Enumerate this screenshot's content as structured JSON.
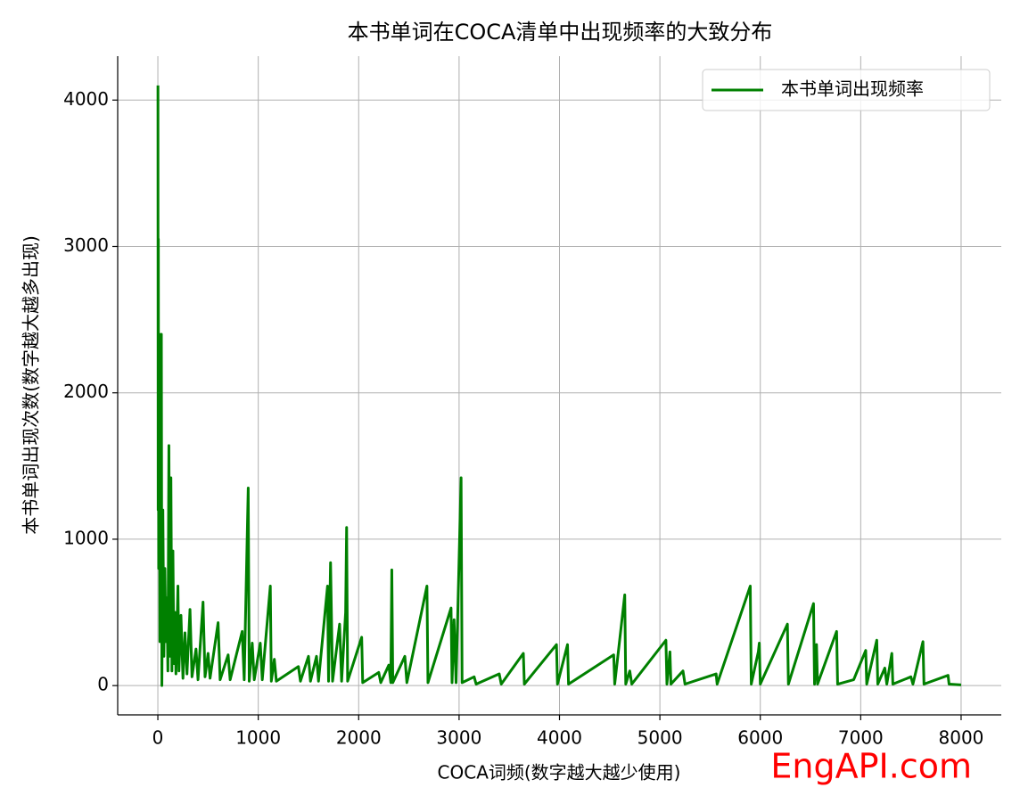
{
  "chart_data": {
    "type": "line",
    "title": "本书单词在COCA清单中出现频率的大致分布",
    "x_label": "COCA词频(数字越大越少使用)",
    "y_label": "本书单词出现次数(数字越大越多出现)",
    "watermark": "EngAPI.com",
    "xlim": [
      -400,
      8400
    ],
    "ylim": [
      -200,
      4300
    ],
    "xticks": [
      0,
      1000,
      2000,
      3000,
      4000,
      5000,
      6000,
      7000,
      8000
    ],
    "yticks": [
      0,
      1000,
      2000,
      3000,
      4000
    ],
    "grid": true,
    "legend": "upper right",
    "x": [
      1,
      3,
      5,
      8,
      10,
      15,
      20,
      25,
      30,
      35,
      40,
      45,
      50,
      60,
      70,
      80,
      90,
      100,
      110,
      120,
      130,
      140,
      150,
      160,
      170,
      180,
      200,
      210,
      230,
      250,
      270,
      290,
      320,
      340,
      380,
      400,
      450,
      470,
      500,
      520,
      600,
      620,
      700,
      720,
      840,
      860,
      900,
      910,
      940,
      960,
      1020,
      1040,
      1120,
      1130,
      1160,
      1180,
      1400,
      1420,
      1500,
      1520,
      1580,
      1600,
      1690,
      1700,
      1720,
      1740,
      1810,
      1830,
      1870,
      1880,
      1890,
      2030,
      2040,
      2200,
      2220,
      2300,
      2320,
      2330,
      2340,
      2460,
      2480,
      2680,
      2690,
      2920,
      2930,
      2950,
      2970,
      3020,
      3030,
      3150,
      3170,
      3400,
      3420,
      3640,
      3650,
      3970,
      3980,
      4080,
      4090,
      4540,
      4550,
      4650,
      4660,
      4700,
      4720,
      5060,
      5070,
      5100,
      5110,
      5230,
      5250,
      5560,
      5570,
      5900,
      5910,
      5980,
      5990,
      6000,
      6270,
      6280,
      6530,
      6540,
      6560,
      6570,
      6760,
      6770,
      6930,
      7050,
      7060,
      7160,
      7170,
      7240,
      7260,
      7310,
      7320,
      7500,
      7520,
      7620,
      7630,
      7870,
      7880,
      8000
    ],
    "series": [
      {
        "name": "本书单词出现频率",
        "color": "#008000",
        "values": [
          4100,
          1200,
          3050,
          800,
          2000,
          2400,
          300,
          2350,
          700,
          2400,
          0,
          600,
          1200,
          200,
          800,
          300,
          600,
          100,
          1640,
          200,
          1420,
          100,
          920,
          150,
          500,
          80,
          680,
          100,
          480,
          50,
          360,
          80,
          520,
          60,
          250,
          40,
          570,
          60,
          220,
          50,
          430,
          40,
          210,
          40,
          370,
          40,
          1350,
          30,
          290,
          40,
          290,
          40,
          680,
          30,
          180,
          30,
          130,
          30,
          200,
          30,
          200,
          30,
          680,
          30,
          840,
          30,
          420,
          30,
          500,
          1080,
          30,
          330,
          20,
          90,
          20,
          140,
          20,
          790,
          20,
          200,
          20,
          680,
          20,
          530,
          20,
          450,
          20,
          1420,
          20,
          60,
          10,
          80,
          10,
          220,
          10,
          280,
          10,
          280,
          10,
          210,
          10,
          620,
          10,
          100,
          10,
          310,
          10,
          230,
          10,
          100,
          10,
          80,
          10,
          680,
          10,
          230,
          290,
          10,
          420,
          10,
          560,
          10,
          280,
          10,
          370,
          10,
          40,
          240,
          10,
          310,
          10,
          120,
          10,
          220,
          10,
          60,
          10,
          300,
          10,
          70,
          10,
          5
        ]
      }
    ]
  }
}
